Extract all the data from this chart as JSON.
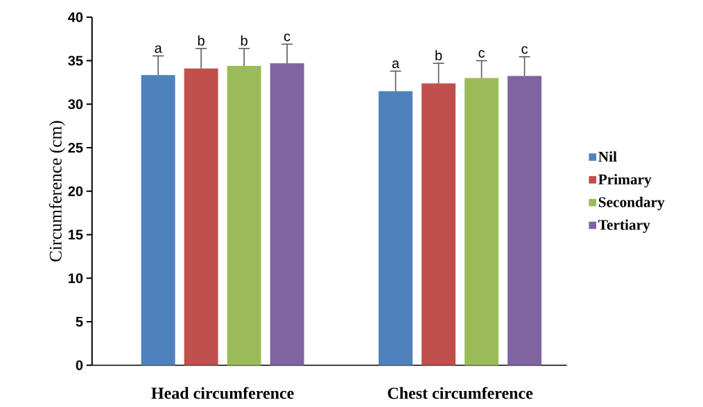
{
  "chart_data": {
    "type": "bar",
    "ylabel": "Circumference (cm)",
    "categories": [
      "Head circumference",
      "Chest circumference"
    ],
    "series": [
      {
        "name": "Nil",
        "color": "#4f81bd",
        "values": [
          33.35,
          31.5
        ],
        "errors": [
          2.2,
          2.3
        ]
      },
      {
        "name": "Primary",
        "color": "#c0504d",
        "values": [
          34.1,
          32.4
        ],
        "errors": [
          2.3,
          2.3
        ]
      },
      {
        "name": "Secondary",
        "color": "#9bbb59",
        "values": [
          34.4,
          33.0
        ],
        "errors": [
          2.0,
          2.0
        ]
      },
      {
        "name": "Tertiary",
        "color": "#8064a2",
        "values": [
          34.7,
          33.25
        ],
        "errors": [
          2.2,
          2.2
        ]
      }
    ],
    "ylim": [
      0,
      40
    ],
    "yticks": [
      0,
      5,
      10,
      15,
      20,
      25,
      30,
      35,
      40
    ],
    "grid": false,
    "legend": "right",
    "annotations": [
      "a",
      "b",
      "b",
      "c",
      "a",
      "b",
      "c",
      "c"
    ]
  }
}
